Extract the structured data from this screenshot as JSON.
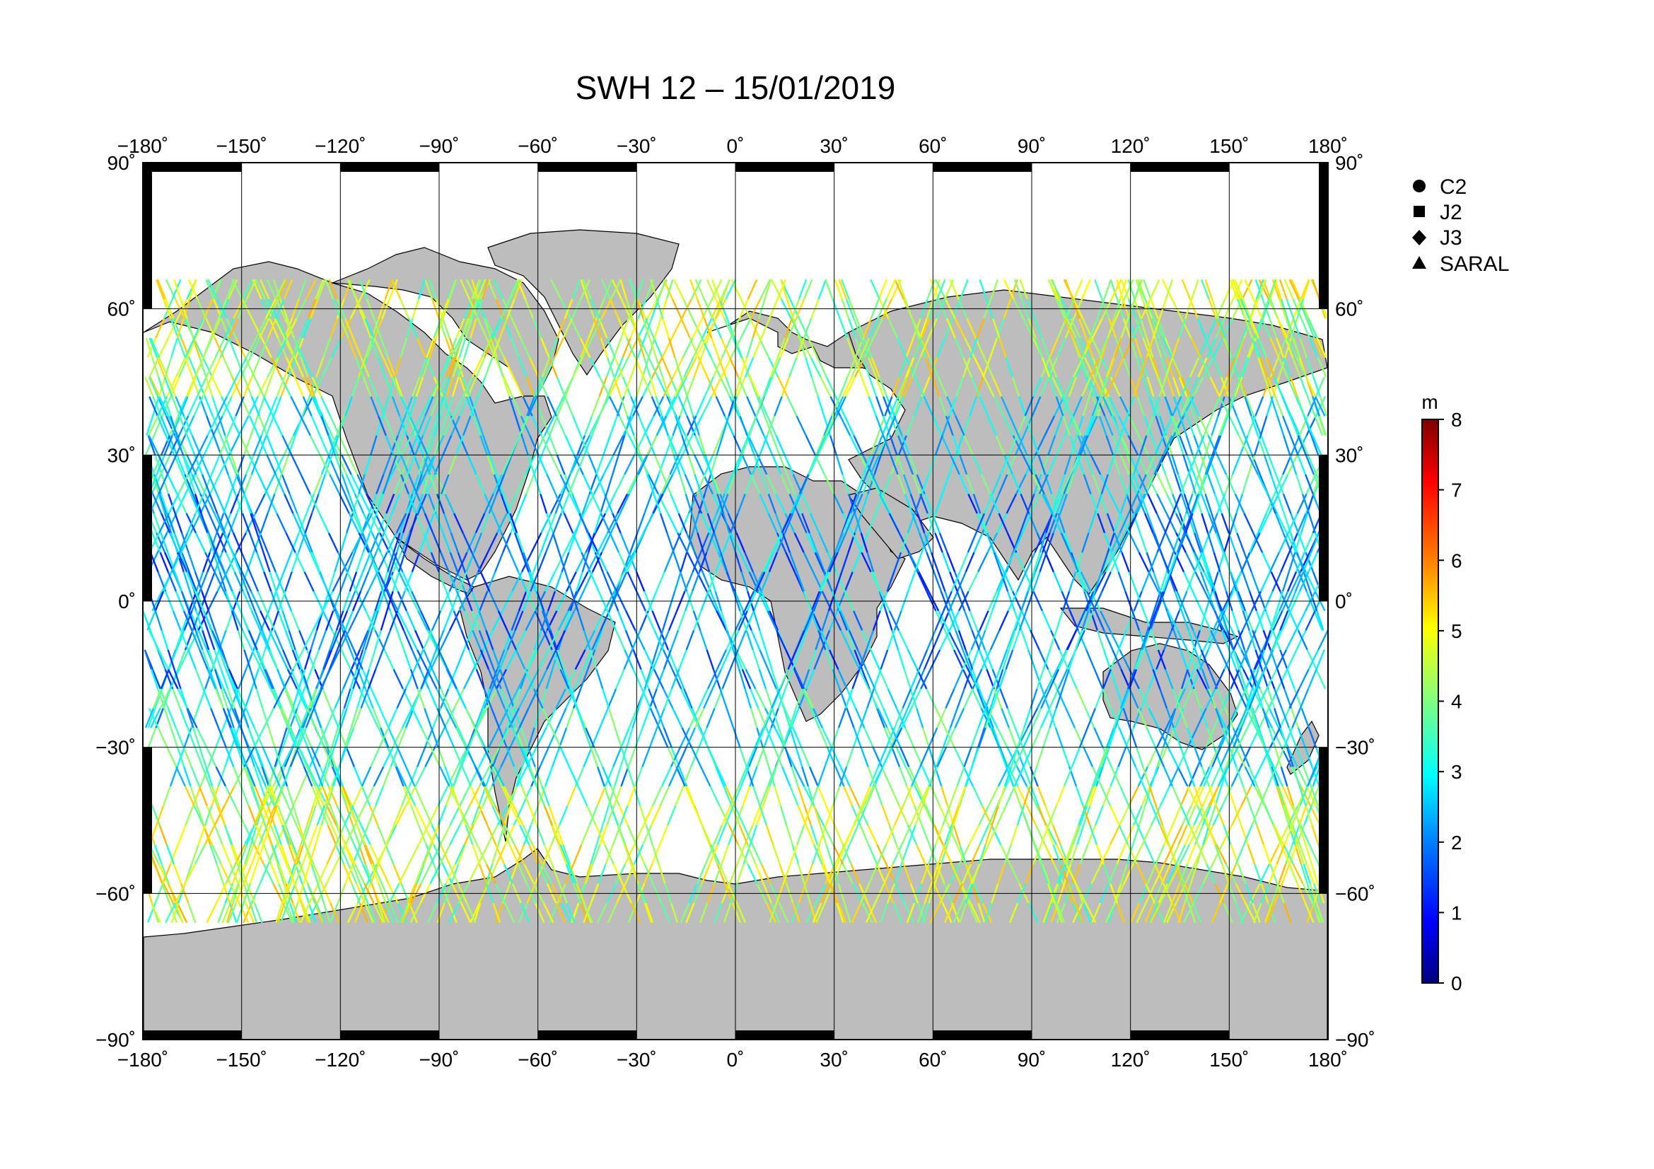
{
  "map": {
    "title": "SWH 12 – 15/01/2019",
    "lon_ticks": [
      {
        "value": -180,
        "label": "−180˚"
      },
      {
        "value": -150,
        "label": "−150˚"
      },
      {
        "value": -120,
        "label": "−120˚"
      },
      {
        "value": -90,
        "label": "−90˚"
      },
      {
        "value": -60,
        "label": "−60˚"
      },
      {
        "value": -30,
        "label": "−30˚"
      },
      {
        "value": 0,
        "label": "0˚"
      },
      {
        "value": 30,
        "label": "30˚"
      },
      {
        "value": 60,
        "label": "60˚"
      },
      {
        "value": 90,
        "label": "90˚"
      },
      {
        "value": 120,
        "label": "120˚"
      },
      {
        "value": 150,
        "label": "150˚"
      },
      {
        "value": 180,
        "label": "180˚"
      }
    ],
    "lat_ticks": [
      {
        "value": 90,
        "label": "90˚"
      },
      {
        "value": 60,
        "label": "60˚"
      },
      {
        "value": 30,
        "label": "30˚"
      },
      {
        "value": 0,
        "label": "0˚"
      },
      {
        "value": -30,
        "label": "−30˚"
      },
      {
        "value": -60,
        "label": "−60˚"
      },
      {
        "value": -90,
        "label": "−90˚"
      }
    ],
    "lon_range": [
      -180,
      180
    ],
    "lat_range": [
      -90,
      90
    ],
    "grid": true,
    "land_color": "#bdbdbd",
    "ocean_color": "#ffffff"
  },
  "legend": {
    "placement": "top-right",
    "items": [
      {
        "symbol": "circle",
        "label": "C2"
      },
      {
        "symbol": "square",
        "label": "J2"
      },
      {
        "symbol": "diamond",
        "label": "J3"
      },
      {
        "symbol": "triangle",
        "label": "SARAL"
      }
    ]
  },
  "colorbar": {
    "unit": "m",
    "min": 0,
    "max": 8,
    "ticks": [
      {
        "value": 8,
        "label": "8"
      },
      {
        "value": 7,
        "label": "7"
      },
      {
        "value": 6,
        "label": "6"
      },
      {
        "value": 5,
        "label": "5"
      },
      {
        "value": 4,
        "label": "4"
      },
      {
        "value": 3,
        "label": "3"
      },
      {
        "value": 2,
        "label": "2"
      },
      {
        "value": 1,
        "label": "1"
      },
      {
        "value": 0,
        "label": "0"
      }
    ],
    "colormap": [
      "#00007f",
      "#0000ff",
      "#007fff",
      "#00ffff",
      "#7fff7f",
      "#ffff00",
      "#ff7f00",
      "#ff0000",
      "#7f0000"
    ]
  }
}
